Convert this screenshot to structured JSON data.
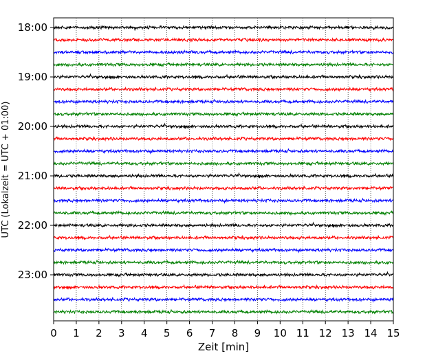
{
  "chart_data": {
    "type": "line",
    "title": "",
    "xlabel": "Zeit  [min]",
    "ylabel": "UTC (Lokalzeit = UTC + 01:00)",
    "xlim": [
      0,
      15
    ],
    "x_ticks": [
      "0",
      "1",
      "2",
      "3",
      "4",
      "5",
      "6",
      "7",
      "8",
      "9",
      "10",
      "11",
      "12",
      "13",
      "14",
      "15"
    ],
    "y_ticks": [
      "18:00",
      "19:00",
      "20:00",
      "21:00",
      "22:00",
      "23:00"
    ],
    "row_interval_minutes": 15,
    "start_time": "18:00",
    "end_time": "23:45",
    "row_count": 24,
    "x_grid": "dotted",
    "legend": "none",
    "series_colors": [
      "#000000",
      "#ff0000",
      "#0000ff",
      "#008000"
    ]
  }
}
